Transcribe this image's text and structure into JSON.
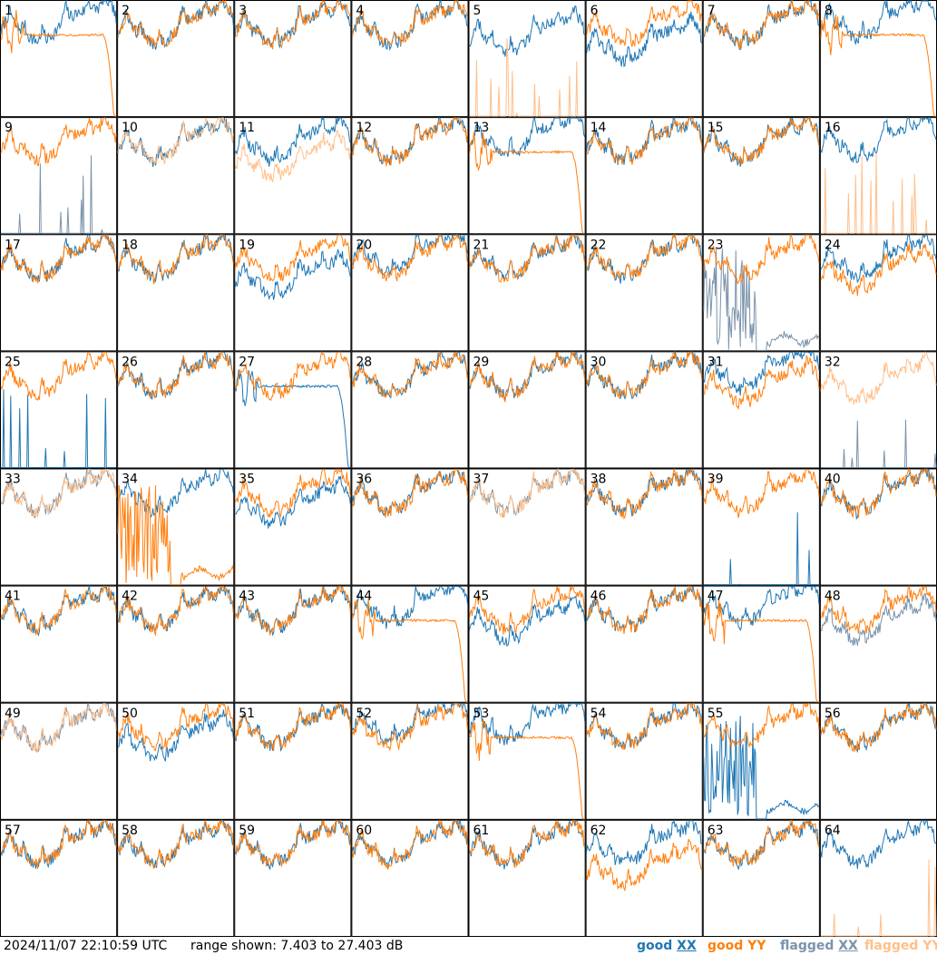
{
  "footer": {
    "timestamp": "2024/11/07 22:10:59 UTC",
    "range_text": "range shown: 7.403 to 27.403 dB"
  },
  "chart_data": {
    "type": "line",
    "layout": "8x8 small multiples, one panel per tile",
    "ylim": [
      7.403,
      27.403
    ],
    "yunit": "dB",
    "grid": false,
    "legend": {
      "placement": "bottom-right",
      "entries": [
        {
          "name": "good XX",
          "color": "#1f77b4",
          "underline": "XX"
        },
        {
          "name": "good YY",
          "color": "#ff7f0e",
          "underline": ""
        },
        {
          "name": "flagged XX",
          "color": "#7b93ab",
          "underline": "XX"
        },
        {
          "name": "flagged YY",
          "color": "#ffbf8a",
          "underline": ""
        }
      ]
    },
    "colors": {
      "good_xx": "#1f77b4",
      "good_yy": "#ff7f0e",
      "flagged_xx": "#7b93ab",
      "flagged_yy": "#ffbf8a"
    },
    "panels": [
      {
        "label": "1",
        "xx": {
          "status": "good",
          "shape": "normal",
          "offset": 0.5
        },
        "yy": {
          "status": "good",
          "shape": "dropout"
        }
      },
      {
        "label": "2",
        "xx": {
          "status": "good",
          "shape": "normal"
        },
        "yy": {
          "status": "good",
          "shape": "normal"
        }
      },
      {
        "label": "3",
        "xx": {
          "status": "good",
          "shape": "normal"
        },
        "yy": {
          "status": "good",
          "shape": "normal"
        }
      },
      {
        "label": "4",
        "xx": {
          "status": "good",
          "shape": "normal"
        },
        "yy": {
          "status": "good",
          "shape": "normal"
        }
      },
      {
        "label": "5",
        "xx": {
          "status": "good",
          "shape": "normal",
          "offset": -1.5
        },
        "yy": {
          "status": "flagged",
          "shape": "spikes"
        }
      },
      {
        "label": "6",
        "xx": {
          "status": "good",
          "shape": "normal",
          "offset": -3
        },
        "yy": {
          "status": "good",
          "shape": "normal"
        }
      },
      {
        "label": "7",
        "xx": {
          "status": "good",
          "shape": "normal"
        },
        "yy": {
          "status": "good",
          "shape": "normal"
        }
      },
      {
        "label": "8",
        "xx": {
          "status": "good",
          "shape": "normal",
          "offset": 1
        },
        "yy": {
          "status": "good",
          "shape": "dropout"
        }
      },
      {
        "label": "9",
        "xx": {
          "status": "flagged",
          "shape": "spikes"
        },
        "yy": {
          "status": "good",
          "shape": "normal"
        }
      },
      {
        "label": "10",
        "xx": {
          "status": "good",
          "shape": "normal"
        },
        "yy": {
          "status": "flagged",
          "shape": "normal"
        }
      },
      {
        "label": "11",
        "xx": {
          "status": "good",
          "shape": "normal"
        },
        "yy": {
          "status": "flagged",
          "shape": "normal",
          "offset": -3
        }
      },
      {
        "label": "12",
        "xx": {
          "status": "good",
          "shape": "normal"
        },
        "yy": {
          "status": "good",
          "shape": "normal"
        }
      },
      {
        "label": "13",
        "xx": {
          "status": "good",
          "shape": "normal",
          "offset": 1
        },
        "yy": {
          "status": "good",
          "shape": "dropout"
        }
      },
      {
        "label": "14",
        "xx": {
          "status": "good",
          "shape": "normal"
        },
        "yy": {
          "status": "good",
          "shape": "normal"
        }
      },
      {
        "label": "15",
        "xx": {
          "status": "good",
          "shape": "normal"
        },
        "yy": {
          "status": "good",
          "shape": "normal"
        }
      },
      {
        "label": "16",
        "xx": {
          "status": "good",
          "shape": "normal",
          "offset": 0.5
        },
        "yy": {
          "status": "flagged",
          "shape": "spikes"
        }
      },
      {
        "label": "17",
        "xx": {
          "status": "good",
          "shape": "normal"
        },
        "yy": {
          "status": "good",
          "shape": "normal"
        }
      },
      {
        "label": "18",
        "xx": {
          "status": "good",
          "shape": "normal"
        },
        "yy": {
          "status": "good",
          "shape": "normal"
        }
      },
      {
        "label": "19",
        "xx": {
          "status": "good",
          "shape": "normal",
          "offset": -3
        },
        "yy": {
          "status": "good",
          "shape": "normal"
        }
      },
      {
        "label": "20",
        "xx": {
          "status": "good",
          "shape": "normal",
          "offset": 1
        },
        "yy": {
          "status": "good",
          "shape": "normal"
        }
      },
      {
        "label": "21",
        "xx": {
          "status": "good",
          "shape": "normal"
        },
        "yy": {
          "status": "good",
          "shape": "normal"
        }
      },
      {
        "label": "22",
        "xx": {
          "status": "good",
          "shape": "normal"
        },
        "yy": {
          "status": "good",
          "shape": "normal"
        }
      },
      {
        "label": "23",
        "xx": {
          "status": "flagged",
          "shape": "burst"
        },
        "yy": {
          "status": "good",
          "shape": "normal"
        }
      },
      {
        "label": "24",
        "xx": {
          "status": "good",
          "shape": "normal"
        },
        "yy": {
          "status": "good",
          "shape": "normal",
          "offset": -2
        }
      },
      {
        "label": "25",
        "xx": {
          "status": "good",
          "shape": "spikes"
        },
        "yy": {
          "status": "good",
          "shape": "normal"
        }
      },
      {
        "label": "26",
        "xx": {
          "status": "good",
          "shape": "normal"
        },
        "yy": {
          "status": "good",
          "shape": "normal"
        }
      },
      {
        "label": "27",
        "xx": {
          "status": "good",
          "shape": "dropout"
        },
        "yy": {
          "status": "good",
          "shape": "normal"
        }
      },
      {
        "label": "28",
        "xx": {
          "status": "good",
          "shape": "normal"
        },
        "yy": {
          "status": "good",
          "shape": "normal"
        }
      },
      {
        "label": "29",
        "xx": {
          "status": "good",
          "shape": "normal"
        },
        "yy": {
          "status": "good",
          "shape": "normal"
        }
      },
      {
        "label": "30",
        "xx": {
          "status": "good",
          "shape": "normal"
        },
        "yy": {
          "status": "good",
          "shape": "normal"
        }
      },
      {
        "label": "31",
        "xx": {
          "status": "good",
          "shape": "normal",
          "offset": 1
        },
        "yy": {
          "status": "good",
          "shape": "normal",
          "offset": -1.5
        }
      },
      {
        "label": "32",
        "xx": {
          "status": "flagged",
          "shape": "spikes"
        },
        "yy": {
          "status": "flagged",
          "shape": "normal",
          "offset": -1
        }
      },
      {
        "label": "33",
        "xx": {
          "status": "flagged",
          "shape": "normal"
        },
        "yy": {
          "status": "flagged",
          "shape": "normal"
        }
      },
      {
        "label": "34",
        "xx": {
          "status": "good",
          "shape": "normal"
        },
        "yy": {
          "status": "good",
          "shape": "burst"
        }
      },
      {
        "label": "35",
        "xx": {
          "status": "good",
          "shape": "normal",
          "offset": -2
        },
        "yy": {
          "status": "good",
          "shape": "normal"
        }
      },
      {
        "label": "36",
        "xx": {
          "status": "good",
          "shape": "normal"
        },
        "yy": {
          "status": "good",
          "shape": "normal"
        }
      },
      {
        "label": "37",
        "xx": {
          "status": "flagged",
          "shape": "normal"
        },
        "yy": {
          "status": "flagged",
          "shape": "normal"
        }
      },
      {
        "label": "38",
        "xx": {
          "status": "good",
          "shape": "normal"
        },
        "yy": {
          "status": "good",
          "shape": "normal"
        }
      },
      {
        "label": "39",
        "xx": {
          "status": "good",
          "shape": "spikes"
        },
        "yy": {
          "status": "good",
          "shape": "normal"
        }
      },
      {
        "label": "40",
        "xx": {
          "status": "good",
          "shape": "normal"
        },
        "yy": {
          "status": "good",
          "shape": "normal"
        }
      },
      {
        "label": "41",
        "xx": {
          "status": "good",
          "shape": "normal"
        },
        "yy": {
          "status": "good",
          "shape": "normal"
        }
      },
      {
        "label": "42",
        "xx": {
          "status": "good",
          "shape": "normal"
        },
        "yy": {
          "status": "good",
          "shape": "normal"
        }
      },
      {
        "label": "43",
        "xx": {
          "status": "good",
          "shape": "normal"
        },
        "yy": {
          "status": "good",
          "shape": "normal"
        }
      },
      {
        "label": "44",
        "xx": {
          "status": "good",
          "shape": "normal",
          "offset": 1
        },
        "yy": {
          "status": "good",
          "shape": "dropout"
        }
      },
      {
        "label": "45",
        "xx": {
          "status": "good",
          "shape": "normal",
          "offset": -2
        },
        "yy": {
          "status": "good",
          "shape": "normal"
        }
      },
      {
        "label": "46",
        "xx": {
          "status": "good",
          "shape": "normal"
        },
        "yy": {
          "status": "good",
          "shape": "normal"
        }
      },
      {
        "label": "47",
        "xx": {
          "status": "good",
          "shape": "normal",
          "offset": 1
        },
        "yy": {
          "status": "good",
          "shape": "dropout"
        }
      },
      {
        "label": "48",
        "xx": {
          "status": "flagged",
          "shape": "normal",
          "offset": -2
        },
        "yy": {
          "status": "good",
          "shape": "normal"
        }
      },
      {
        "label": "49",
        "xx": {
          "status": "flagged",
          "shape": "normal"
        },
        "yy": {
          "status": "flagged",
          "shape": "normal"
        }
      },
      {
        "label": "50",
        "xx": {
          "status": "good",
          "shape": "normal",
          "offset": -2
        },
        "yy": {
          "status": "good",
          "shape": "normal"
        }
      },
      {
        "label": "51",
        "xx": {
          "status": "good",
          "shape": "normal"
        },
        "yy": {
          "status": "good",
          "shape": "normal"
        }
      },
      {
        "label": "52",
        "xx": {
          "status": "good",
          "shape": "normal",
          "offset": 1
        },
        "yy": {
          "status": "good",
          "shape": "normal"
        }
      },
      {
        "label": "53",
        "xx": {
          "status": "good",
          "shape": "normal",
          "offset": 1
        },
        "yy": {
          "status": "good",
          "shape": "dropout"
        }
      },
      {
        "label": "54",
        "xx": {
          "status": "good",
          "shape": "normal"
        },
        "yy": {
          "status": "good",
          "shape": "normal"
        }
      },
      {
        "label": "55",
        "xx": {
          "status": "good",
          "shape": "burst"
        },
        "yy": {
          "status": "good",
          "shape": "normal"
        }
      },
      {
        "label": "56",
        "xx": {
          "status": "good",
          "shape": "normal"
        },
        "yy": {
          "status": "good",
          "shape": "normal"
        }
      },
      {
        "label": "57",
        "xx": {
          "status": "good",
          "shape": "normal"
        },
        "yy": {
          "status": "good",
          "shape": "normal"
        }
      },
      {
        "label": "58",
        "xx": {
          "status": "good",
          "shape": "normal"
        },
        "yy": {
          "status": "good",
          "shape": "normal"
        }
      },
      {
        "label": "59",
        "xx": {
          "status": "good",
          "shape": "normal"
        },
        "yy": {
          "status": "good",
          "shape": "normal"
        }
      },
      {
        "label": "60",
        "xx": {
          "status": "good",
          "shape": "normal"
        },
        "yy": {
          "status": "good",
          "shape": "normal"
        }
      },
      {
        "label": "61",
        "xx": {
          "status": "good",
          "shape": "normal"
        },
        "yy": {
          "status": "good",
          "shape": "normal"
        }
      },
      {
        "label": "62",
        "xx": {
          "status": "good",
          "shape": "normal"
        },
        "yy": {
          "status": "good",
          "shape": "normal",
          "offset": -4
        }
      },
      {
        "label": "63",
        "xx": {
          "status": "good",
          "shape": "normal"
        },
        "yy": {
          "status": "good",
          "shape": "normal"
        }
      },
      {
        "label": "64",
        "xx": {
          "status": "good",
          "shape": "normal"
        },
        "yy": {
          "status": "flagged",
          "shape": "spikes"
        }
      }
    ]
  }
}
